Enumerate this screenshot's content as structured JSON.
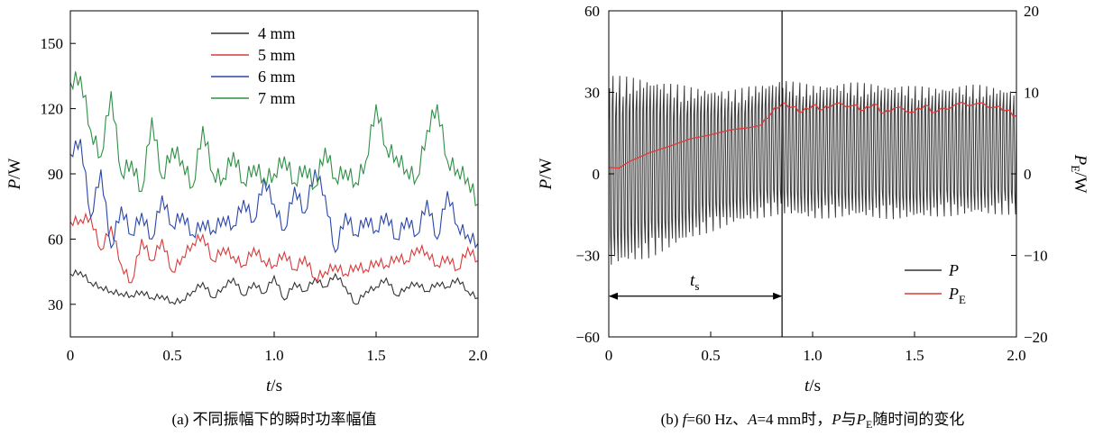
{
  "chart_data": [
    {
      "type": "line",
      "caption": "(a) 不同振幅下的瞬时功率幅值",
      "xlabel": {
        "main": "t",
        "unit": "/s"
      },
      "ylabel": {
        "main": "P",
        "unit": "/W"
      },
      "xlim": [
        0,
        2.0
      ],
      "ylim": [
        15,
        165
      ],
      "xticks": [
        0,
        0.5,
        1.0,
        1.5,
        2.0
      ],
      "xtick_labels": [
        "0",
        "0.5",
        "1.0",
        "1.5",
        "2.0"
      ],
      "yticks": [
        30,
        60,
        90,
        120,
        150
      ],
      "ytick_labels": [
        "30",
        "60",
        "90",
        "120",
        "150"
      ],
      "legend_position": "top-center",
      "series": [
        {
          "name": "4 mm",
          "color": "#333333",
          "x": [
            0.0,
            0.05,
            0.1,
            0.15,
            0.2,
            0.25,
            0.3,
            0.35,
            0.4,
            0.45,
            0.5,
            0.55,
            0.6,
            0.65,
            0.7,
            0.75,
            0.8,
            0.85,
            0.9,
            0.95,
            1.0,
            1.05,
            1.1,
            1.15,
            1.2,
            1.25,
            1.3,
            1.35,
            1.4,
            1.45,
            1.5,
            1.55,
            1.6,
            1.65,
            1.7,
            1.75,
            1.8,
            1.85,
            1.9,
            1.95,
            2.0
          ],
          "y": [
            44,
            45,
            40,
            38,
            36,
            35,
            34,
            36,
            33,
            34,
            31,
            32,
            36,
            40,
            33,
            38,
            42,
            34,
            40,
            35,
            43,
            32,
            40,
            36,
            42,
            38,
            44,
            38,
            30,
            36,
            38,
            42,
            34,
            38,
            40,
            36,
            40,
            38,
            42,
            36,
            33
          ]
        },
        {
          "name": "5 mm",
          "color": "#d93a3a",
          "x": [
            0.0,
            0.05,
            0.1,
            0.15,
            0.2,
            0.25,
            0.3,
            0.35,
            0.4,
            0.45,
            0.5,
            0.55,
            0.6,
            0.65,
            0.7,
            0.75,
            0.8,
            0.85,
            0.9,
            0.95,
            1.0,
            1.05,
            1.1,
            1.15,
            1.2,
            1.25,
            1.3,
            1.35,
            1.4,
            1.45,
            1.5,
            1.55,
            1.6,
            1.65,
            1.7,
            1.75,
            1.8,
            1.85,
            1.9,
            1.95,
            2.0
          ],
          "y": [
            68,
            69,
            70,
            55,
            66,
            48,
            40,
            60,
            50,
            60,
            45,
            52,
            58,
            62,
            50,
            56,
            52,
            48,
            56,
            50,
            48,
            54,
            46,
            52,
            42,
            45,
            48,
            44,
            48,
            46,
            50,
            48,
            52,
            50,
            56,
            54,
            48,
            52,
            46,
            56,
            50
          ]
        },
        {
          "name": "6 mm",
          "color": "#2a46a8",
          "x": [
            0.0,
            0.05,
            0.1,
            0.15,
            0.2,
            0.25,
            0.3,
            0.35,
            0.4,
            0.45,
            0.5,
            0.55,
            0.6,
            0.65,
            0.7,
            0.75,
            0.8,
            0.85,
            0.9,
            0.95,
            1.0,
            1.05,
            1.1,
            1.15,
            1.2,
            1.25,
            1.3,
            1.35,
            1.4,
            1.45,
            1.5,
            1.55,
            1.6,
            1.65,
            1.7,
            1.75,
            1.8,
            1.85,
            1.9,
            1.95,
            2.0
          ],
          "y": [
            99,
            106,
            70,
            92,
            56,
            75,
            62,
            72,
            60,
            80,
            66,
            72,
            62,
            68,
            64,
            70,
            66,
            78,
            68,
            88,
            76,
            64,
            84,
            72,
            92,
            80,
            54,
            72,
            62,
            70,
            64,
            72,
            60,
            70,
            62,
            78,
            60,
            82,
            66,
            62,
            58
          ]
        },
        {
          "name": "7 mm",
          "color": "#2f8f45",
          "x": [
            0.0,
            0.05,
            0.1,
            0.15,
            0.2,
            0.25,
            0.3,
            0.35,
            0.4,
            0.45,
            0.5,
            0.55,
            0.6,
            0.65,
            0.7,
            0.75,
            0.8,
            0.85,
            0.9,
            0.95,
            1.0,
            1.05,
            1.1,
            1.15,
            1.2,
            1.25,
            1.3,
            1.35,
            1.4,
            1.45,
            1.5,
            1.55,
            1.6,
            1.65,
            1.7,
            1.75,
            1.8,
            1.85,
            1.9,
            1.95,
            2.0
          ],
          "y": [
            132,
            135,
            110,
            98,
            128,
            90,
            96,
            82,
            116,
            88,
            102,
            96,
            84,
            112,
            90,
            88,
            100,
            86,
            94,
            88,
            90,
            98,
            86,
            94,
            84,
            102,
            88,
            92,
            86,
            96,
            122,
            102,
            98,
            92,
            88,
            110,
            122,
            96,
            92,
            88,
            76
          ]
        }
      ]
    },
    {
      "type": "line",
      "caption": {
        "prefix": "(b) ",
        "f_sym": "f",
        "f_eq": "=60 Hz、",
        "a_sym": "A",
        "a_eq": "=4 mm时，",
        "p_sym": "P",
        "mid": "与",
        "pe_sym": "P",
        "pe_sub": "E",
        "suffix": "随时间的变化"
      },
      "xlabel": {
        "main": "t",
        "unit": "/s"
      },
      "ylabel_left": {
        "main": "P",
        "unit": "/W"
      },
      "ylabel_right": {
        "main": "P",
        "sub": "E",
        "unit": "/W"
      },
      "xlim": [
        0,
        2.0
      ],
      "ylim_left": [
        -60,
        60
      ],
      "ylim_right": [
        -20,
        20
      ],
      "xticks": [
        0,
        0.5,
        1.0,
        1.5,
        2.0
      ],
      "xtick_labels": [
        "0",
        "0.5",
        "1.0",
        "1.5",
        "2.0"
      ],
      "yticks_left": [
        -60,
        -30,
        0,
        30,
        60
      ],
      "ytick_labels_left": [
        "−60",
        "−30",
        "0",
        "30",
        "60"
      ],
      "yticks_right": [
        -20,
        -10,
        0,
        10,
        20
      ],
      "ytick_labels_right": [
        "−20",
        "−10",
        "0",
        "10",
        "20"
      ],
      "legend_position": "bottom-right",
      "legend": [
        {
          "sym": "P",
          "sub": "",
          "color": "#333333"
        },
        {
          "sym": "P",
          "sub": "E",
          "color": "#e03a3a"
        }
      ],
      "oscillation": {
        "name": "P",
        "color": "#3a3a3a",
        "frequency_hz": 60,
        "envelope_x": [
          0.0,
          0.2,
          0.4,
          0.6,
          0.85,
          1.0,
          1.2,
          1.4,
          1.6,
          1.8,
          2.0
        ],
        "envelope_upper": [
          44,
          42,
          38,
          36,
          40,
          38,
          39,
          38,
          37,
          38,
          36
        ],
        "envelope_lower": [
          -42,
          -38,
          -30,
          -24,
          -20,
          -22,
          -21,
          -22,
          -21,
          -20,
          -20
        ]
      },
      "pe_series": {
        "name": "P_E",
        "color": "#e03a3a",
        "axis": "right",
        "x": [
          0.0,
          0.05,
          0.1,
          0.2,
          0.3,
          0.4,
          0.5,
          0.6,
          0.7,
          0.75,
          0.8,
          0.85,
          0.9,
          0.95,
          1.0,
          1.05,
          1.1,
          1.2,
          1.25,
          1.3,
          1.35,
          1.4,
          1.5,
          1.55,
          1.6,
          1.7,
          1.8,
          1.9,
          1.95,
          2.0
        ],
        "y": [
          0.8,
          0.7,
          1.5,
          2.6,
          3.4,
          4.3,
          4.8,
          5.4,
          5.7,
          6.0,
          7.6,
          8.6,
          8.2,
          7.6,
          8.4,
          7.9,
          8.5,
          8.4,
          7.8,
          8.6,
          7.4,
          8.1,
          7.6,
          8.4,
          7.5,
          8.5,
          8.6,
          8.2,
          7.8,
          7.1
        ]
      },
      "vline_x": 0.85,
      "ts_label": {
        "main": "t",
        "sub": "s"
      },
      "ts_range": [
        0,
        0.85
      ]
    }
  ]
}
